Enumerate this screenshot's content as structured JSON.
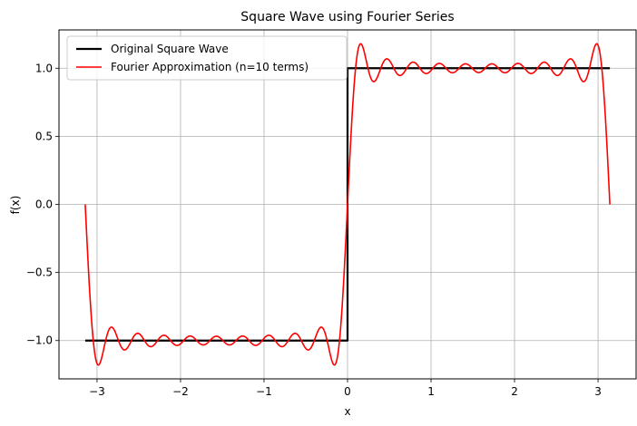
{
  "chart_data": {
    "type": "line",
    "title": "Square Wave using Fourier Series",
    "xlabel": "x",
    "ylabel": "f(x)",
    "xlim": [
      -3.4558,
      3.4558
    ],
    "ylim": [
      -1.2812,
      1.2812
    ],
    "xticks": [
      -3,
      -2,
      -1,
      0,
      1,
      2,
      3
    ],
    "xtick_labels": [
      "−3",
      "−2",
      "−1",
      "0",
      "1",
      "2",
      "3"
    ],
    "yticks": [
      -1.0,
      -0.5,
      0.0,
      0.5,
      1.0
    ],
    "ytick_labels": [
      "−1.0",
      "−0.5",
      "0.0",
      "0.5",
      "1.0"
    ],
    "grid": true,
    "legend_position": "upper-left",
    "series": [
      {
        "name": "Original Square Wave",
        "color": "#000000",
        "style": "step",
        "x": [
          -3.1416,
          0.0,
          0.0,
          3.1416
        ],
        "y": [
          -1.0,
          -1.0,
          1.0,
          1.0
        ]
      },
      {
        "name": "Fourier Approximation (n=10 terms)",
        "color": "#ff0000",
        "style": "fourier",
        "terms": 10,
        "x_range": [
          -3.1416,
          3.1416
        ]
      }
    ]
  }
}
